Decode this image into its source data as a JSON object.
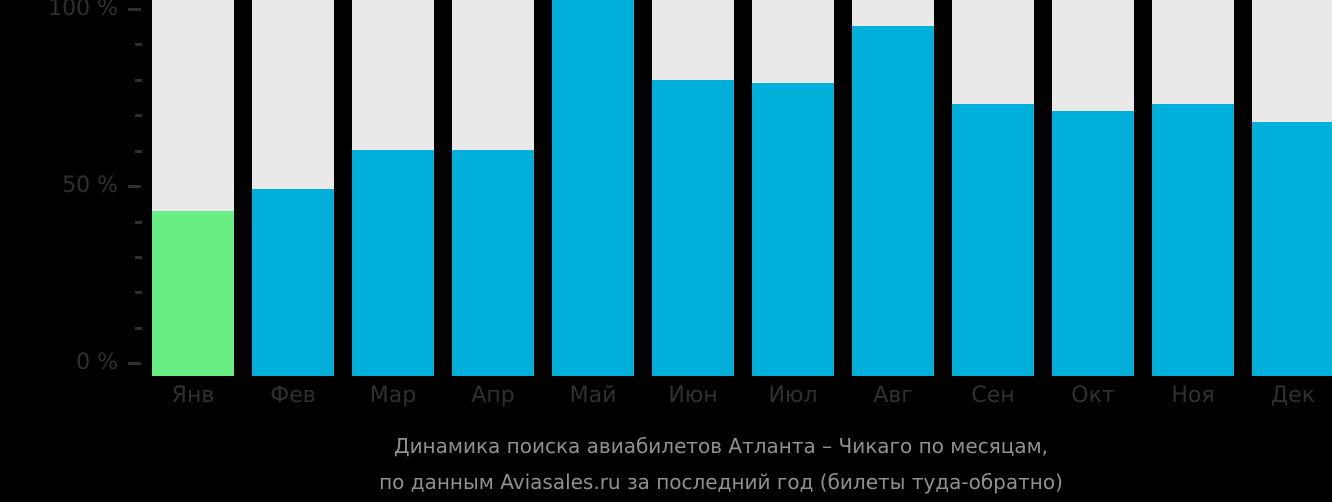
{
  "page": {
    "background": "#000000"
  },
  "chart_data": {
    "type": "bar",
    "title": "Динамика поиска авиабилетов Атланта – Чикаго по месяцам,",
    "subtitle": "по данным Aviasales.ru за последний год (билеты туда-обратно)",
    "categories": [
      "Янв",
      "Фев",
      "Мар",
      "Апр",
      "Май",
      "Июн",
      "Июл",
      "Авг",
      "Сен",
      "Окт",
      "Ноя",
      "Дек"
    ],
    "values": [
      43,
      49,
      60,
      60,
      100,
      80,
      79,
      95,
      73,
      71,
      73,
      68
    ],
    "unit": "%",
    "ylim": [
      0,
      100
    ],
    "y_tick_labels": [
      "100 %",
      "50 %",
      "0 %"
    ],
    "y_minor_ticks_per_major": 4,
    "grid": "off",
    "legend": "none",
    "highlight_index": 0,
    "colors": {
      "bar": "#00afda",
      "highlight": "#69ee84",
      "track": "#e9e9e9",
      "axis_text": "#303030",
      "tick": "#2f2f2f",
      "caption_text": "#909090",
      "background": "#000000"
    }
  }
}
